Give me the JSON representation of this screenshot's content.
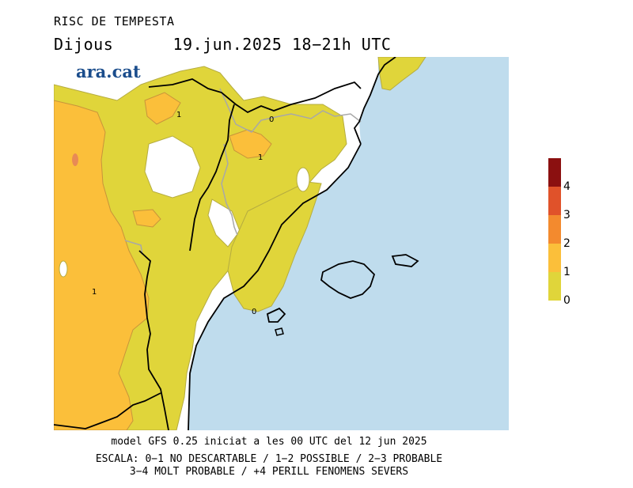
{
  "header": {
    "title": "RISC DE TEMPESTA",
    "day": "Dijous",
    "date": "19.jun.2025",
    "time": "18−21h UTC"
  },
  "logo": {
    "text": "ara.cat"
  },
  "map": {
    "contour_labels": [
      "1",
      "0",
      "1",
      "0",
      "1"
    ]
  },
  "legend": {
    "items": [
      {
        "label": "4",
        "color": "#8b1010"
      },
      {
        "label": "3",
        "color": "#e0522a"
      },
      {
        "label": "2",
        "color": "#f38a2e"
      },
      {
        "label": "1",
        "color": "#fbbf3a"
      },
      {
        "label": "0",
        "color": "#e0d53a"
      }
    ]
  },
  "footer": {
    "model": "model GFS 0.25 iniciat a les 00 UTC del 12 jun 2025",
    "scale1": "ESCALA: 0−1 NO DESCARTABLE / 1−2 POSSIBLE / 2−3 PROBABLE",
    "scale2": "3−4 MOLT PROBABLE / +4 PERILL FENOMENS SEVERS"
  },
  "colors": {
    "sea": "#bfdced",
    "risk0": "#e0d53a",
    "risk1": "#fbbf3a",
    "risk2": "#f38a2e",
    "land_no_risk": "#ffffff"
  }
}
